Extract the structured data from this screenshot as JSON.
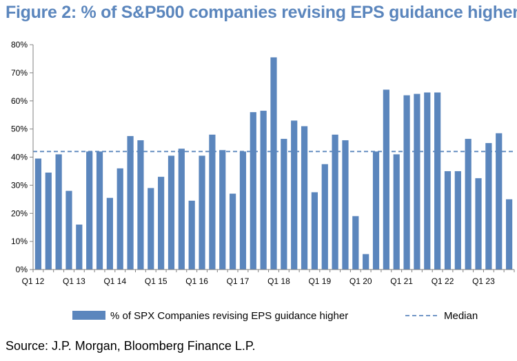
{
  "title": "Figure 2: % of S&P500 companies revising EPS guidance higher",
  "source": "Source: J.P. Morgan, Bloomberg Finance L.P.",
  "colors": {
    "bar": "#5b86bd",
    "median": "#5b86bd",
    "title": "#5b86bd",
    "axis": "#808080"
  },
  "chart_data": {
    "type": "bar",
    "title": "% of S&P500 companies revising EPS guidance higher",
    "xlabel": "",
    "ylabel": "",
    "ylim": [
      0,
      80
    ],
    "yticks": [
      0,
      10,
      20,
      30,
      40,
      50,
      60,
      70,
      80
    ],
    "ytick_labels": [
      "0%",
      "10%",
      "20%",
      "30%",
      "40%",
      "50%",
      "60%",
      "70%",
      "80%"
    ],
    "categories": [
      "Q1 12",
      "Q2 12",
      "Q3 12",
      "Q4 12",
      "Q1 13",
      "Q2 13",
      "Q3 13",
      "Q4 13",
      "Q1 14",
      "Q2 14",
      "Q3 14",
      "Q4 14",
      "Q1 15",
      "Q2 15",
      "Q3 15",
      "Q4 15",
      "Q1 16",
      "Q2 16",
      "Q3 16",
      "Q4 16",
      "Q1 17",
      "Q2 17",
      "Q3 17",
      "Q4 17",
      "Q1 18",
      "Q2 18",
      "Q3 18",
      "Q4 18",
      "Q1 19",
      "Q2 19",
      "Q3 19",
      "Q4 19",
      "Q1 20",
      "Q2 20",
      "Q3 20",
      "Q4 20",
      "Q1 21",
      "Q2 21",
      "Q3 21",
      "Q4 21",
      "Q1 22",
      "Q2 22",
      "Q3 22",
      "Q4 22",
      "Q1 23",
      "Q2 23",
      "Q3 23"
    ],
    "xtick_labels": [
      {
        "index": 0,
        "label": "Q1 12"
      },
      {
        "index": 4,
        "label": "Q1 13"
      },
      {
        "index": 8,
        "label": "Q1 14"
      },
      {
        "index": 12,
        "label": "Q1 15"
      },
      {
        "index": 16,
        "label": "Q1 16"
      },
      {
        "index": 20,
        "label": "Q1 17"
      },
      {
        "index": 24,
        "label": "Q1 18"
      },
      {
        "index": 28,
        "label": "Q1 19"
      },
      {
        "index": 32,
        "label": "Q1 20"
      },
      {
        "index": 36,
        "label": "Q1 21"
      },
      {
        "index": 40,
        "label": "Q1 22"
      },
      {
        "index": 44,
        "label": "Q1 23"
      }
    ],
    "series": [
      {
        "name": "% of SPX Companies revising EPS guidance higher",
        "type": "bar",
        "values": [
          39.5,
          34.5,
          41,
          28,
          16,
          42,
          42,
          25.5,
          36,
          47.5,
          46,
          29,
          33,
          40.5,
          43,
          24.5,
          40.5,
          48,
          42.5,
          27,
          42,
          56,
          56.5,
          75.5,
          46.5,
          53,
          51,
          27.5,
          37.5,
          48,
          46,
          19,
          5.5,
          42,
          64,
          41,
          62,
          62.5,
          63,
          63,
          35,
          35,
          46.5,
          32.5,
          45,
          48.5,
          25
        ]
      },
      {
        "name": "Median",
        "type": "line",
        "value": 42
      }
    ],
    "legend": [
      "% of SPX Companies revising EPS guidance higher",
      "Median"
    ],
    "legend_position": "bottom",
    "grid": false
  }
}
